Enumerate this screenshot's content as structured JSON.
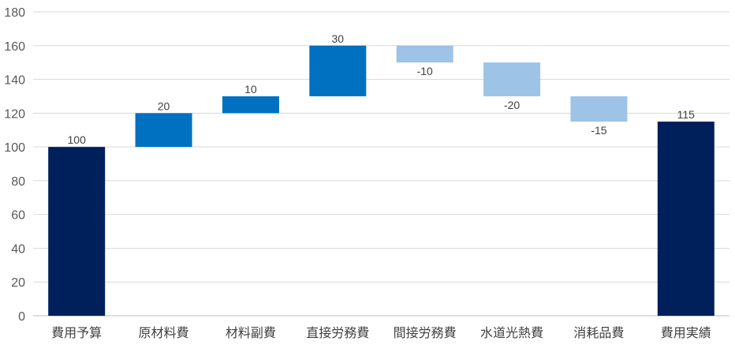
{
  "chart_data": {
    "type": "bar",
    "subtype": "waterfall",
    "title": "",
    "xlabel": "",
    "ylabel": "",
    "ylim": [
      0,
      180
    ],
    "ytick_step": 20,
    "grid": true,
    "legend": "none",
    "categories": [
      "費用予算",
      "原材料費",
      "材料副費",
      "直接労務費",
      "間接労務費",
      "水道光熱費",
      "消耗品費",
      "費用実績"
    ],
    "bars": [
      {
        "category": "費用予算",
        "kind": "total",
        "start": 0,
        "end": 100,
        "label": "100"
      },
      {
        "category": "原材料費",
        "kind": "increase",
        "start": 100,
        "end": 120,
        "label": "20"
      },
      {
        "category": "材料副費",
        "kind": "increase",
        "start": 120,
        "end": 130,
        "label": "10"
      },
      {
        "category": "直接労務費",
        "kind": "increase",
        "start": 130,
        "end": 160,
        "label": "30"
      },
      {
        "category": "間接労務費",
        "kind": "decrease",
        "start": 160,
        "end": 150,
        "label": "-10"
      },
      {
        "category": "水道光熱費",
        "kind": "decrease",
        "start": 150,
        "end": 130,
        "label": "-20"
      },
      {
        "category": "消耗品費",
        "kind": "decrease",
        "start": 130,
        "end": 115,
        "label": "-15"
      },
      {
        "category": "費用実績",
        "kind": "total",
        "start": 0,
        "end": 115,
        "label": "115"
      }
    ],
    "colors": {
      "total": "#00205b",
      "increase": "#0070c0",
      "decrease": "#9dc3e6"
    }
  }
}
